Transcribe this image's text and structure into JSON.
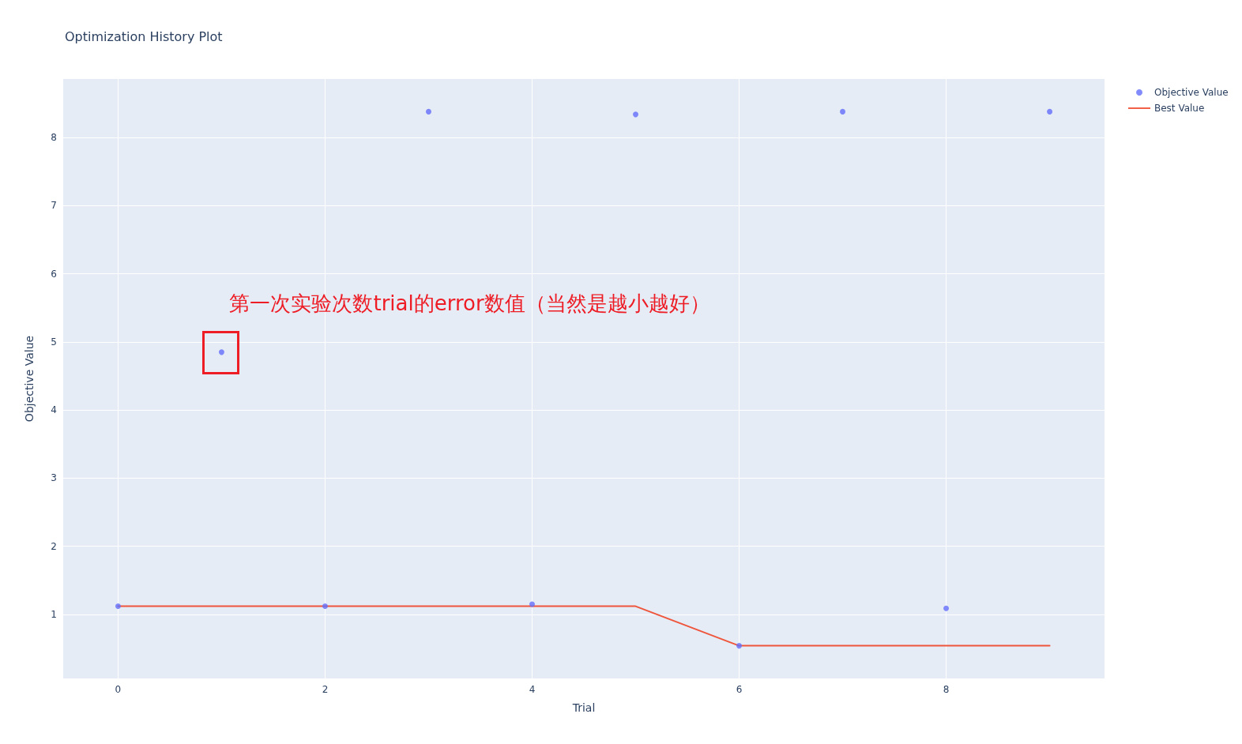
{
  "chart_data": {
    "type": "scatter",
    "title": "Optimization History Plot",
    "xlabel": "Trial",
    "ylabel": "Objective Value",
    "x": [
      0,
      1,
      2,
      3,
      4,
      5,
      6,
      7,
      8,
      9
    ],
    "series": [
      {
        "name": "Objective Value",
        "color": "#636efa",
        "marker": "circle",
        "values": [
          1.12,
          4.85,
          1.12,
          8.38,
          1.15,
          8.34,
          0.54,
          8.38,
          1.09,
          8.38
        ]
      },
      {
        "name": "Best Value",
        "type": "line",
        "color": "#ef553b",
        "marker": "none",
        "line_style": "solid",
        "values": [
          1.12,
          1.12,
          1.12,
          1.12,
          1.12,
          1.12,
          0.54,
          0.54,
          0.54,
          0.54
        ]
      }
    ],
    "xlim": [
      -0.53,
      9.53
    ],
    "ylim": [
      0.06,
      8.86
    ],
    "xticks": [
      0,
      2,
      4,
      6,
      8
    ],
    "yticks": [
      1,
      2,
      3,
      4,
      5,
      6,
      7,
      8
    ],
    "grid": true,
    "legend": "top right",
    "annotations": [
      {
        "text": "第一次实验次数trial的error数值（当然是越小越好）",
        "x": 1,
        "y": 4.85
      }
    ]
  }
}
